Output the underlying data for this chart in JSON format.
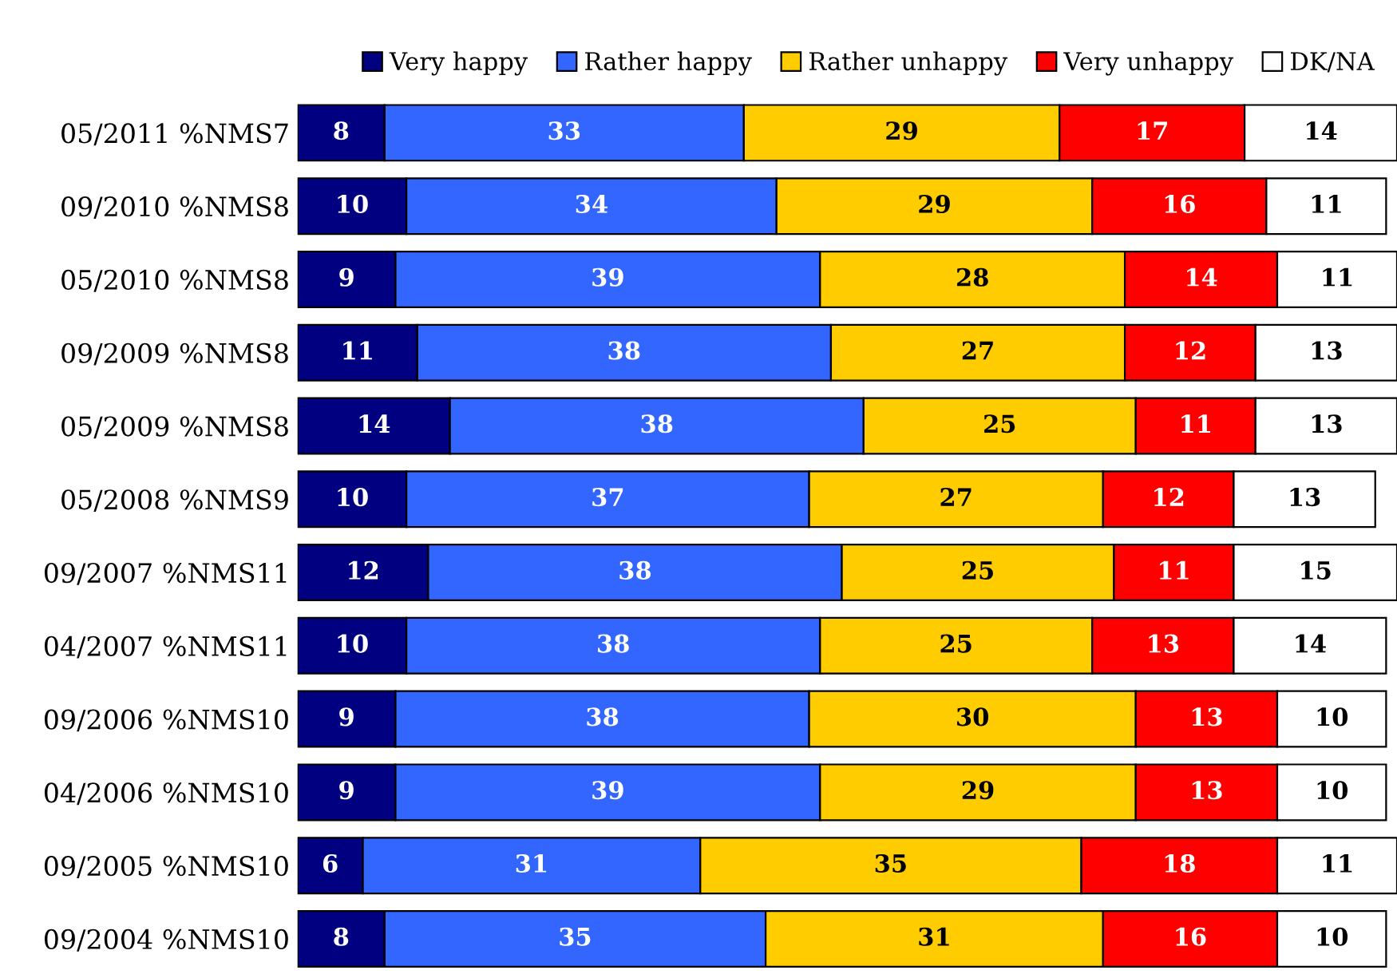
{
  "chart_data": {
    "type": "bar",
    "orientation": "horizontal",
    "stacked": true,
    "data_labels": true,
    "legend": "top",
    "tick_labels": "y",
    "grid": false,
    "categories": [
      "05/2011 %NMS7",
      "09/2010 %NMS8",
      "05/2010 %NMS8",
      "09/2009 %NMS8",
      "05/2009 %NMS8",
      "05/2008 %NMS9",
      "09/2007 %NMS11",
      "04/2007 %NMS11",
      "09/2006 %NMS10",
      "04/2006 %NMS10",
      "09/2005 %NMS10",
      "09/2004 %NMS10"
    ],
    "series": [
      {
        "name": "Very happy",
        "color": "#000080",
        "values": [
          8,
          10,
          9,
          11,
          14,
          10,
          12,
          10,
          9,
          9,
          6,
          8
        ]
      },
      {
        "name": "Rather happy",
        "color": "#3366ff",
        "values": [
          33,
          34,
          39,
          38,
          38,
          37,
          38,
          38,
          38,
          39,
          31,
          35
        ]
      },
      {
        "name": "Rather unhappy",
        "color": "#ffcc00",
        "values": [
          29,
          29,
          28,
          27,
          25,
          27,
          25,
          25,
          30,
          29,
          35,
          31
        ]
      },
      {
        "name": "Very unhappy",
        "color": "#ff0000",
        "values": [
          17,
          16,
          14,
          12,
          11,
          12,
          11,
          13,
          13,
          13,
          18,
          16
        ]
      },
      {
        "name": "DK/NA",
        "color": "#ffffff",
        "values": [
          14,
          11,
          11,
          13,
          13,
          13,
          15,
          14,
          10,
          10,
          11,
          10
        ]
      }
    ]
  }
}
